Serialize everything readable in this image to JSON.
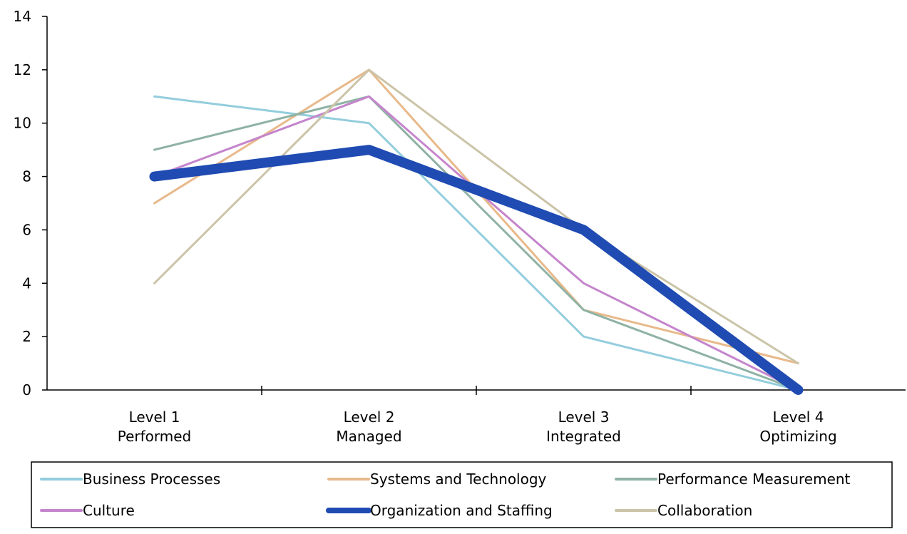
{
  "chart_data": {
    "type": "line",
    "categories": [
      [
        "Level 1",
        "Performed"
      ],
      [
        "Level 2",
        "Managed"
      ],
      [
        "Level 3",
        "Integrated"
      ],
      [
        "Level 4",
        "Optimizing"
      ]
    ],
    "ylim": [
      0,
      14
    ],
    "yticks": [
      "0",
      "2",
      "4",
      "6",
      "8",
      "10",
      "12",
      "14"
    ],
    "grid": false,
    "legend_position": "bottom",
    "series": [
      {
        "name": "Business Processes",
        "values": [
          11,
          10,
          2,
          0
        ],
        "color": "#93cddd",
        "width": 3
      },
      {
        "name": "Systems and Technology",
        "values": [
          7,
          12,
          3,
          1
        ],
        "color": "#e8b98a",
        "width": 3
      },
      {
        "name": "Performance Measurement",
        "values": [
          9,
          11,
          3,
          0
        ],
        "color": "#8fb2a4",
        "width": 3
      },
      {
        "name": "Culture",
        "values": [
          8,
          11,
          4,
          0
        ],
        "color": "#c585cc",
        "width": 3
      },
      {
        "name": "Collaboration",
        "values": [
          4,
          12,
          6,
          1
        ],
        "color": "#cbc4a8",
        "width": 3
      },
      {
        "name": "Organization and Staffing",
        "values": [
          8,
          9,
          6,
          0
        ],
        "color": "#1f4bb2",
        "width": 14
      }
    ],
    "legend_order": [
      "Business Processes",
      "Systems and Technology",
      "Performance Measurement",
      "Culture",
      "Organization and Staffing",
      "Collaboration"
    ]
  }
}
